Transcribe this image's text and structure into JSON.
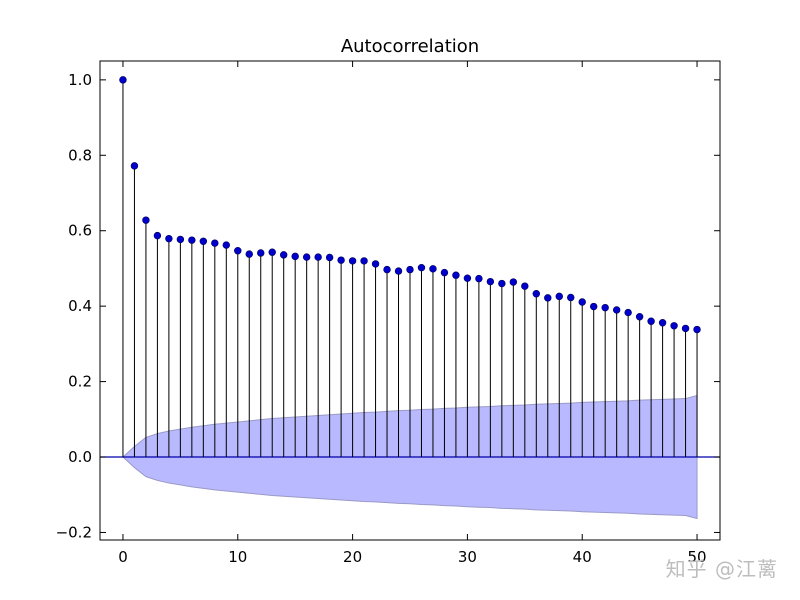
{
  "chart_data": {
    "type": "stem",
    "title": "Autocorrelation",
    "xlabel": "",
    "ylabel": "",
    "xlim": [
      -2,
      52
    ],
    "ylim": [
      -0.22,
      1.05
    ],
    "xticks": [
      0,
      10,
      20,
      30,
      40,
      50
    ],
    "yticks": [
      -0.2,
      0.0,
      0.2,
      0.4,
      0.6,
      0.8,
      1.0
    ],
    "ytick_labels": [
      "−0.2",
      "0.0",
      "0.2",
      "0.4",
      "0.6",
      "0.8",
      "1.0"
    ],
    "grid": false,
    "lags": [
      0,
      1,
      2,
      3,
      4,
      5,
      6,
      7,
      8,
      9,
      10,
      11,
      12,
      13,
      14,
      15,
      16,
      17,
      18,
      19,
      20,
      21,
      22,
      23,
      24,
      25,
      26,
      27,
      28,
      29,
      30,
      31,
      32,
      33,
      34,
      35,
      36,
      37,
      38,
      39,
      40,
      41,
      42,
      43,
      44,
      45,
      46,
      47,
      48,
      49,
      50
    ],
    "values": [
      1.0,
      0.772,
      0.628,
      0.587,
      0.579,
      0.577,
      0.575,
      0.572,
      0.567,
      0.562,
      0.547,
      0.538,
      0.541,
      0.543,
      0.536,
      0.532,
      0.53,
      0.53,
      0.529,
      0.522,
      0.52,
      0.52,
      0.512,
      0.497,
      0.493,
      0.497,
      0.502,
      0.499,
      0.489,
      0.482,
      0.474,
      0.473,
      0.465,
      0.46,
      0.464,
      0.453,
      0.433,
      0.422,
      0.426,
      0.423,
      0.411,
      0.399,
      0.396,
      0.39,
      0.383,
      0.372,
      0.36,
      0.356,
      0.348,
      0.341,
      0.338
    ],
    "conf_band": [
      0.0,
      0.028,
      0.052,
      0.062,
      0.069,
      0.074,
      0.079,
      0.083,
      0.087,
      0.09,
      0.093,
      0.096,
      0.099,
      0.102,
      0.104,
      0.106,
      0.108,
      0.11,
      0.112,
      0.114,
      0.116,
      0.118,
      0.119,
      0.121,
      0.123,
      0.124,
      0.126,
      0.127,
      0.129,
      0.13,
      0.132,
      0.133,
      0.134,
      0.136,
      0.137,
      0.138,
      0.14,
      0.141,
      0.142,
      0.143,
      0.145,
      0.146,
      0.147,
      0.148,
      0.149,
      0.151,
      0.152,
      0.153,
      0.154,
      0.155,
      0.163
    ],
    "colors": {
      "marker": "#0000cc",
      "stem": "#000000",
      "band": "#b9b9ff",
      "band_edge": "#9a9ac8",
      "zero_line": "#0000aa"
    }
  },
  "watermark": "知乎 @江蓠"
}
